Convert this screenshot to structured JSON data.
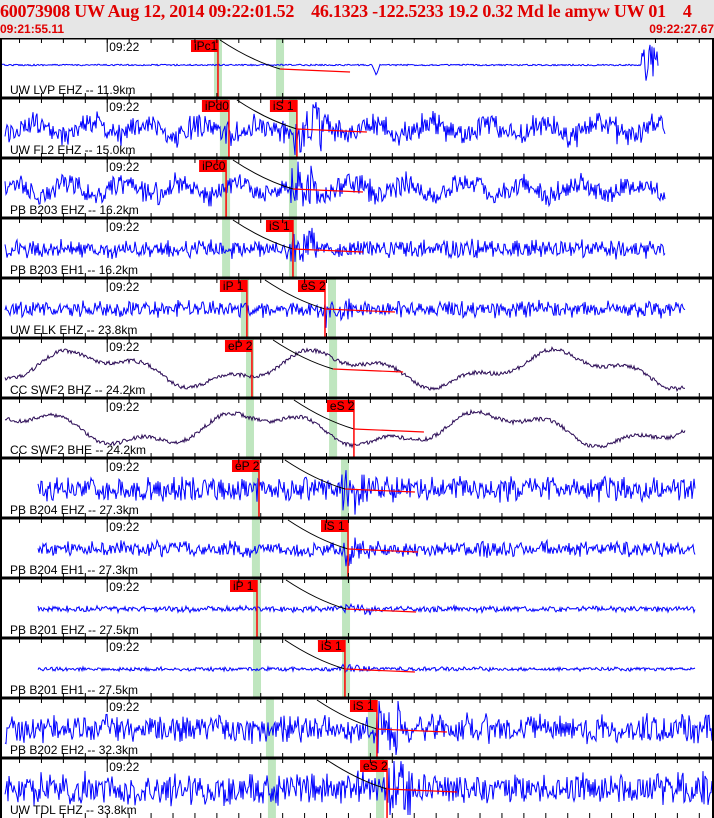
{
  "header": {
    "title": "60073908 UW Aug 12, 2014 09:22:01.52    46.1323 -122.5233 19.2 0.32 Md le amyw UW 01    4",
    "start_time": "09:21:55.11",
    "end_time": "09:22:27.67"
  },
  "colors": {
    "header_text": "#e00000",
    "trace": "#0000ff",
    "broadband_trace": "#2a0a55",
    "pick": "#ff0000",
    "predicted_band": "#bfe6bf",
    "header_bg": "#e6e6e6"
  },
  "chart_data": {
    "type": "line",
    "title": "",
    "x_axis": {
      "start": "09:21:55.11",
      "end": "09:22:27.67",
      "tick_interval_s": 1,
      "minute_label": "09:22"
    },
    "grid": false,
    "traces": [
      {
        "label": "UW LVP EHZ -- 11.9km",
        "color": "blue",
        "picks": [
          {
            "label": "iPc1",
            "time": "09:22:05.05"
          }
        ],
        "predicted": [
          "09:22:05.05",
          "09:22:07.88"
        ]
      },
      {
        "label": "UW FL2 EHZ -- 15.0km",
        "color": "blue",
        "picks": [
          {
            "label": "iPd0",
            "time": "09:22:05.55"
          },
          {
            "label": "iS 1",
            "time": "09:22:08.65"
          }
        ],
        "predicted": [
          "09:22:05.32",
          "09:22:08.47"
        ]
      },
      {
        "label": "PB B203 EHZ -- 16.2km",
        "color": "blue",
        "picks": [
          {
            "label": "iPc0",
            "time": "09:22:05.42"
          }
        ],
        "predicted": [
          "09:22:05.42",
          "09:22:08.47"
        ]
      },
      {
        "label": "PB B203 EH1 -- 16.2km",
        "color": "blue",
        "picks": [
          {
            "label": "iS 1",
            "time": "09:22:08.47"
          }
        ],
        "predicted": [
          "09:22:05.42",
          "09:22:08.47"
        ]
      },
      {
        "label": "UW ELK EHZ -- 23.8km",
        "color": "blue",
        "picks": [
          {
            "label": "iP 1",
            "time": "09:22:06.37"
          },
          {
            "label": "eS 2",
            "time": "09:22:09.93"
          }
        ],
        "predicted": [
          "09:22:06.28",
          "09:22:10.25"
        ]
      },
      {
        "label": "CC SWF2 BHZ -- 24.2km",
        "color": "purple",
        "picks": [
          {
            "label": "eP 2",
            "time": "09:22:06.60"
          }
        ],
        "predicted": [
          "09:22:06.51",
          "09:22:10.30"
        ]
      },
      {
        "label": "CC SWF2 BHE -- 24.2km",
        "color": "purple",
        "picks": [
          {
            "label": "eS 2",
            "time": "09:22:11.25"
          }
        ],
        "predicted": [
          "09:22:06.51",
          "09:22:10.30"
        ]
      },
      {
        "label": "PB B204 EHZ -- 27.3km",
        "color": "blue",
        "picks": [
          {
            "label": "eP 2",
            "time": "09:22:06.92"
          }
        ],
        "predicted": [
          "09:22:06.78",
          "09:22:10.84"
        ]
      },
      {
        "label": "PB B204 EH1 -- 27.3km",
        "color": "blue",
        "picks": [
          {
            "label": "iS 1",
            "time": "09:22:10.98"
          }
        ],
        "predicted": [
          "09:22:06.78",
          "09:22:10.84"
        ]
      },
      {
        "label": "PB B201 EHZ -- 27.5km",
        "color": "blue",
        "picks": [
          {
            "label": "iP 1",
            "time": "09:22:06.83"
          }
        ],
        "predicted": [
          "09:22:06.83",
          "09:22:10.89"
        ]
      },
      {
        "label": "PB B201 EH1 -- 27.5km",
        "color": "blue",
        "picks": [
          {
            "label": "iS 1",
            "time": "09:22:10.84"
          }
        ],
        "predicted": [
          "09:22:06.83",
          "09:22:10.89"
        ]
      },
      {
        "label": "PB B202 EH2 -- 32.3km",
        "color": "blue",
        "picks": [
          {
            "label": "iS 1",
            "time": "09:22:12.30"
          }
        ],
        "predicted": [
          "09:22:07.42",
          "09:22:12.07"
        ]
      },
      {
        "label": "UW TDL EHZ -- 33.8km",
        "color": "blue",
        "picks": [
          {
            "label": "eS 2",
            "time": "09:22:12.76"
          }
        ],
        "predicted": [
          "09:22:07.51",
          "09:22:12.44"
        ]
      }
    ]
  }
}
